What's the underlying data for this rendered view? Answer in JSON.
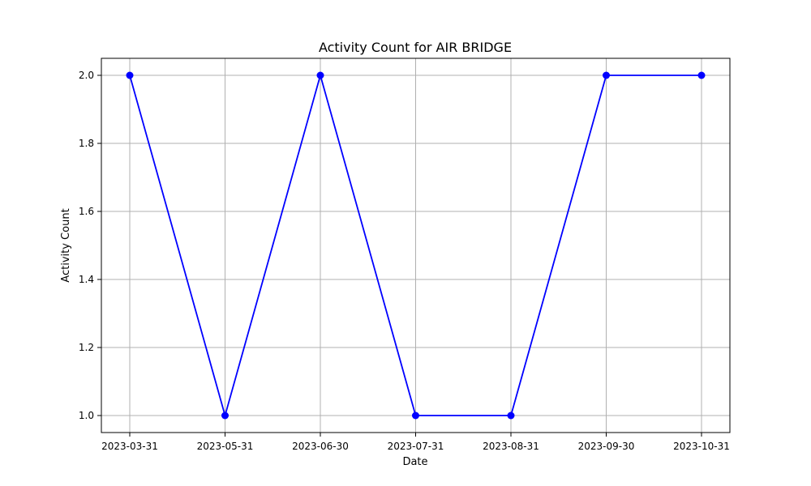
{
  "chart_data": {
    "type": "line",
    "title": "Activity Count for AIR BRIDGE",
    "xlabel": "Date",
    "ylabel": "Activity Count",
    "categories": [
      "2023-03-31",
      "2023-05-31",
      "2023-06-30",
      "2023-07-31",
      "2023-08-31",
      "2023-09-30",
      "2023-10-31"
    ],
    "series": [
      {
        "name": "Activity Count",
        "values": [
          2,
          1,
          2,
          1,
          1,
          2,
          2
        ],
        "color": "#0000ff",
        "marker": "circle"
      }
    ],
    "ylim": [
      0.95,
      2.05
    ],
    "yticks": [
      1.0,
      1.2,
      1.4,
      1.6,
      1.8,
      2.0
    ],
    "ytick_labels": [
      "1.0",
      "1.2",
      "1.4",
      "1.6",
      "1.8",
      "2.0"
    ],
    "grid": true,
    "grid_color": "#b0b0b0"
  }
}
